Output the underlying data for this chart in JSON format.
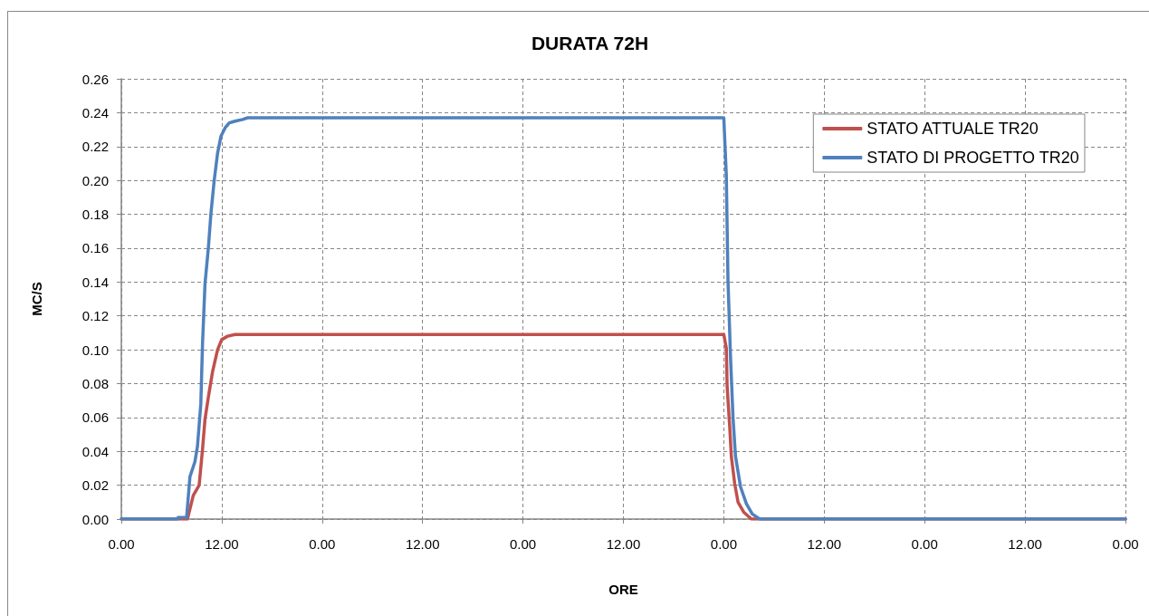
{
  "chart_data": {
    "type": "line",
    "title": "DURATA 72H",
    "xlabel": "ORE",
    "ylabel": "MC/S",
    "xlim": [
      "--01-01T00:00",
      "--01-06T00:00"
    ],
    "xticks": [
      {
        "value": "--01-01T00:00",
        "label": "0.00"
      },
      {
        "value": "--01-01T12:00",
        "label": "12.00"
      },
      {
        "value": "--01-02T00:00",
        "label": "0.00"
      },
      {
        "value": "--01-02T12:00",
        "label": "12.00"
      },
      {
        "value": "--01-03T00:00",
        "label": "0.00"
      },
      {
        "value": "--01-03T12:00",
        "label": "12.00"
      },
      {
        "value": "--01-04T00:00",
        "label": "0.00"
      },
      {
        "value": "--01-04T12:00",
        "label": "12.00"
      },
      {
        "value": "--01-05T00:00",
        "label": "0.00"
      },
      {
        "value": "--01-05T12:00",
        "label": "12.00"
      },
      {
        "value": "--01-06T00:00",
        "label": "0.00"
      }
    ],
    "ylim": [
      0,
      0.26
    ],
    "yticks": [
      {
        "value": 0,
        "label": "0.00"
      },
      {
        "value": 0.02,
        "label": "0.02"
      },
      {
        "value": 0.04,
        "label": "0.04"
      },
      {
        "value": 0.06,
        "label": "0.06"
      },
      {
        "value": 0.08,
        "label": "0.08"
      },
      {
        "value": 0.1,
        "label": "0.10"
      },
      {
        "value": 0.12,
        "label": "0.12"
      },
      {
        "value": 0.14,
        "label": "0.14"
      },
      {
        "value": 0.16,
        "label": "0.16"
      },
      {
        "value": 0.18,
        "label": "0.18"
      },
      {
        "value": 0.2,
        "label": "0.20"
      },
      {
        "value": 0.22,
        "label": "0.22"
      },
      {
        "value": 0.24,
        "label": "0.24"
      },
      {
        "value": 0.26,
        "label": "0.26"
      }
    ],
    "grid": true,
    "legend": "top right",
    "marker": "none",
    "line_style": "solid",
    "series": [
      {
        "name": "STATO ATTUALE TR20",
        "color": "#c0504d",
        "x": [
          "--01-01T00:00",
          "--01-01T07:54",
          "--01-01T08:36",
          "--01-01T09:18",
          "--01-01T09:42",
          "--01-01T10:00",
          "--01-01T10:24",
          "--01-01T10:54",
          "--01-01T11:30",
          "--01-01T12:00",
          "--01-01T12:42",
          "--01-01T13:36",
          "--01-01T15:06",
          "--01-04T00:00",
          "--01-04T00:18",
          "--01-04T00:24",
          "--01-04T00:42",
          "--01-04T00:54",
          "--01-04T01:18",
          "--01-04T01:42",
          "--01-04T02:24",
          "--01-04T03:18",
          "--01-06T00:00"
        ],
        "values": [
          0,
          0,
          0.014,
          0.02,
          0.041,
          0.059,
          0.072,
          0.087,
          0.1,
          0.106,
          0.108,
          0.109,
          0.109,
          0.109,
          0.101,
          0.078,
          0.055,
          0.037,
          0.021,
          0.01,
          0.004,
          0,
          0
        ]
      },
      {
        "name": "STATO DI PROGETTO TR20",
        "color": "#4f81bd",
        "x": [
          "--01-01T00:00",
          "--01-01T06:42",
          "--01-01T06:48",
          "--01-01T07:48",
          "--01-01T08:12",
          "--01-01T08:48",
          "--01-01T09:06",
          "--01-01T09:30",
          "--01-01T09:42",
          "--01-01T10:00",
          "--01-01T10:24",
          "--01-01T10:42",
          "--01-01T11:06",
          "--01-01T11:30",
          "--01-01T11:54",
          "--01-01T12:24",
          "--01-01T12:54",
          "--01-01T13:36",
          "--01-01T14:30",
          "--01-01T15:06",
          "--01-04T00:00",
          "--01-04T00:18",
          "--01-04T00:30",
          "--01-04T00:48",
          "--01-04T01:06",
          "--01-04T01:24",
          "--01-04T02:00",
          "--01-04T02:42",
          "--01-04T03:24",
          "--01-04T04:18",
          "--01-06T00:00"
        ],
        "values": [
          0,
          0,
          0.001,
          0.001,
          0.025,
          0.034,
          0.043,
          0.068,
          0.103,
          0.139,
          0.16,
          0.18,
          0.2,
          0.216,
          0.226,
          0.231,
          0.234,
          0.235,
          0.236,
          0.237,
          0.237,
          0.203,
          0.141,
          0.096,
          0.06,
          0.037,
          0.019,
          0.009,
          0.003,
          0,
          0
        ]
      }
    ]
  }
}
